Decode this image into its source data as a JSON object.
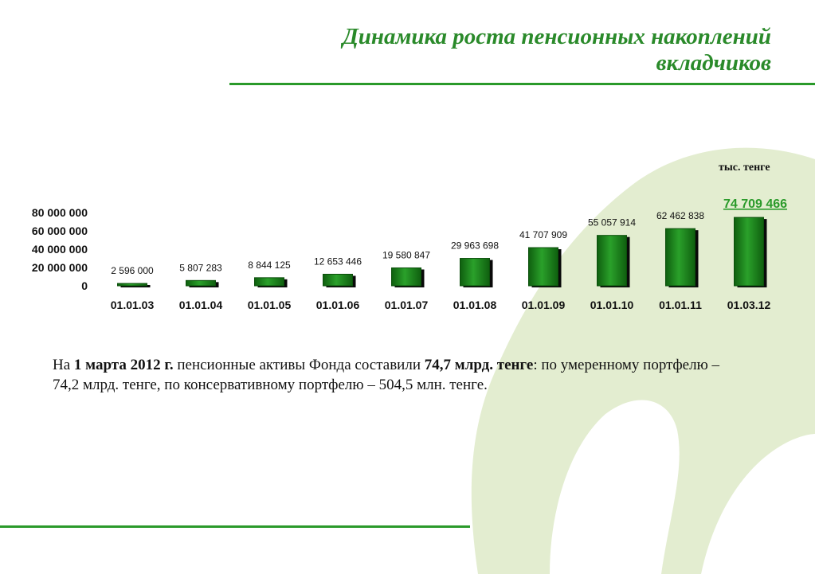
{
  "header": {
    "title_line1": "Динамика роста пенсионных накоплений",
    "title_line2": "вкладчиков"
  },
  "colors": {
    "accent": "#2a9a2a",
    "bar": "#1f8a1f",
    "highlight_value": "#2a9a2a",
    "background_logo": "#e3edd0"
  },
  "chart_data": {
    "type": "bar",
    "categories": [
      "01.01.03",
      "01.01.04",
      "01.01.05",
      "01.01.06",
      "01.01.07",
      "01.01.08",
      "01.01.09",
      "01.01.10",
      "01.01.11",
      "01.03.12"
    ],
    "values": [
      2596000,
      5807283,
      8844125,
      12653446,
      19580847,
      29963698,
      41707909,
      55057914,
      62462838,
      74709466
    ],
    "data_labels": [
      "2 596 000",
      "5 807 283",
      "8 844 125",
      "12 653 446",
      "19 580 847",
      "29 963 698",
      "41 707 909",
      "55 057 914",
      "62 462 838",
      "74 709 466"
    ],
    "y_ticks": [
      "0",
      "20 000 000",
      "40 000 000",
      "60 000 000",
      "80 000 000"
    ],
    "y_tick_values": [
      0,
      20000000,
      40000000,
      60000000,
      80000000
    ],
    "unit_label": "тыс. тенге",
    "ylim": [
      0,
      80000000
    ],
    "grid": false,
    "highlight_last": true
  },
  "body": {
    "part1": "На ",
    "part2_bold": "1 марта 2012 г.",
    "part3": " пенсионные активы Фонда составили ",
    "part4_bold": "74,7 млрд. тенге",
    "part5": ": по умеренному портфелю – 74,2 млрд. тенге, по консервативному портфелю – 504,5 млн. тенге."
  }
}
